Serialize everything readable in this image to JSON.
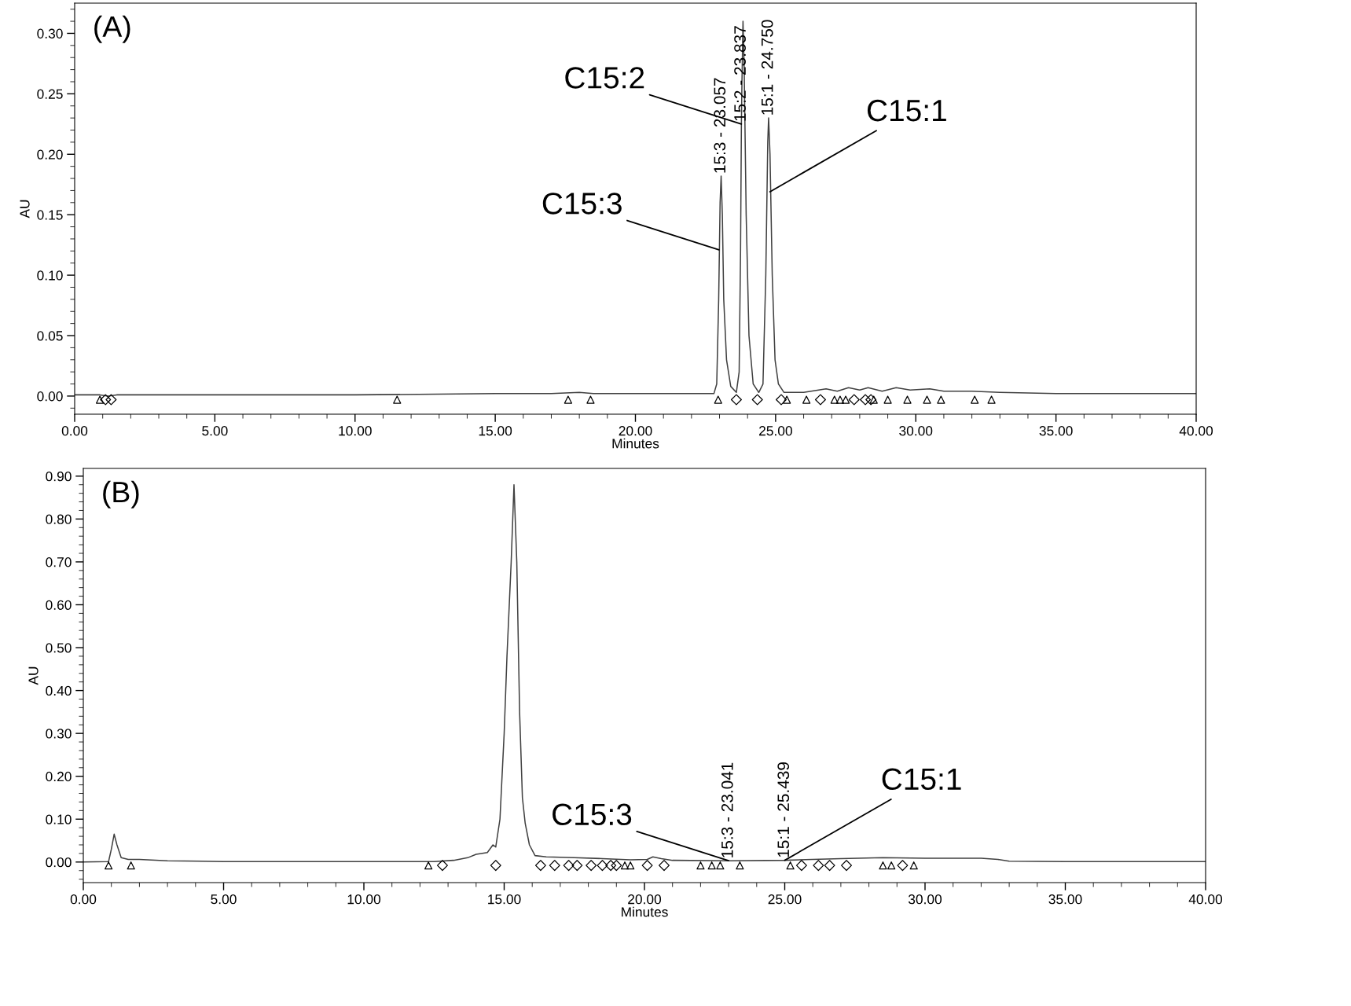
{
  "chart_data": [
    {
      "type": "line",
      "xlabel": "Minutes",
      "ylabel": "AU",
      "xlim": [
        0,
        40
      ],
      "ylim": [
        -0.015,
        0.325
      ],
      "grid": false,
      "line_style": "solid",
      "xticks": [
        {
          "value": 0,
          "label": "0.00"
        },
        {
          "value": 5,
          "label": "5.00"
        },
        {
          "value": 10,
          "label": "10.00"
        },
        {
          "value": 15,
          "label": "15.00"
        },
        {
          "value": 20,
          "label": "20.00"
        },
        {
          "value": 25,
          "label": "25.00"
        },
        {
          "value": 30,
          "label": "30.00"
        },
        {
          "value": 35,
          "label": "35.00"
        },
        {
          "value": 40,
          "label": "40.00"
        }
      ],
      "yticks": [
        {
          "value": 0,
          "label": "0.00"
        },
        {
          "value": 0.05,
          "label": "0.05"
        },
        {
          "value": 0.1,
          "label": "0.10"
        },
        {
          "value": 0.15,
          "label": "0.15"
        },
        {
          "value": 0.2,
          "label": "0.20"
        },
        {
          "value": 0.25,
          "label": "0.25"
        },
        {
          "value": 0.3,
          "label": "0.30"
        }
      ],
      "series": [
        {
          "color": "#404040",
          "marker": "none",
          "x": [
            0,
            0.9,
            1.2,
            1.5,
            5,
            10,
            15,
            17,
            18,
            18.5,
            20,
            22,
            22.8,
            22.9,
            22.97,
            23.02,
            23.057,
            23.1,
            23.15,
            23.25,
            23.4,
            23.6,
            23.7,
            23.75,
            23.78,
            23.8,
            23.837,
            23.88,
            23.95,
            24.05,
            24.2,
            24.4,
            24.55,
            24.65,
            24.72,
            24.75,
            24.8,
            24.88,
            24.98,
            25.1,
            25.3,
            26,
            26.8,
            27.2,
            27.6,
            28,
            28.3,
            28.8,
            29.3,
            29.8,
            30.5,
            31,
            32,
            33,
            35,
            40
          ],
          "values": [
            0.001,
            0.001,
            0.0,
            0.001,
            0.001,
            0.001,
            0.002,
            0.002,
            0.003,
            0.002,
            0.002,
            0.002,
            0.002,
            0.01,
            0.08,
            0.16,
            0.182,
            0.15,
            0.08,
            0.03,
            0.008,
            0.003,
            0.02,
            0.12,
            0.225,
            0.26,
            0.31,
            0.27,
            0.15,
            0.05,
            0.01,
            0.003,
            0.01,
            0.1,
            0.21,
            0.23,
            0.2,
            0.1,
            0.03,
            0.01,
            0.003,
            0.003,
            0.006,
            0.004,
            0.007,
            0.005,
            0.007,
            0.004,
            0.007,
            0.005,
            0.006,
            0.004,
            0.004,
            0.003,
            0.002,
            0.002
          ]
        },
        {
          "type": "scatter",
          "color": "#000000",
          "marker": "triangle",
          "x": [
            0.9,
            11.5,
            17.6,
            18.4,
            22.95,
            25.4,
            26.1,
            27.1,
            27.3,
            27.5,
            28.5,
            29.0,
            29.7,
            30.4,
            30.9,
            32.1,
            32.7
          ],
          "values": [
            -0.003,
            -0.003,
            -0.003,
            -0.003,
            -0.003,
            -0.003,
            -0.003,
            -0.003,
            -0.003,
            -0.003,
            -0.003,
            -0.003,
            -0.003,
            -0.003,
            -0.003,
            -0.003,
            -0.003
          ]
        },
        {
          "type": "scatter",
          "color": "#000000",
          "marker": "diamond",
          "x": [
            1.1,
            1.3,
            23.6,
            24.35,
            25.2,
            26.6,
            27.8,
            28.2,
            28.4
          ],
          "values": [
            -0.003,
            -0.003,
            -0.003,
            -0.003,
            -0.003,
            -0.003,
            -0.003,
            -0.003,
            -0.003
          ]
        }
      ],
      "annotations": [
        "(A)",
        {
          "text": "15:3 - 23.057",
          "x": 23.057,
          "y": 0.182
        },
        {
          "text": "C15:3",
          "x": 22.98,
          "y": 0.121
        },
        {
          "text": "15:2 - 23.837",
          "x": 23.78,
          "y": 0.225
        },
        {
          "text": "C15:2",
          "x": 23.78,
          "y": 0.225
        },
        {
          "text": "15:1 - 24.750",
          "x": 24.75,
          "y": 0.23
        },
        {
          "text": "C15:1",
          "x": 24.8,
          "y": 0.169
        }
      ]
    },
    {
      "type": "line",
      "xlabel": "Minutes",
      "ylabel": "AU",
      "xlim": [
        0,
        40
      ],
      "ylim": [
        -0.048,
        0.918
      ],
      "grid": false,
      "line_style": "solid",
      "xticks": [
        {
          "value": 0,
          "label": "0.00"
        },
        {
          "value": 5,
          "label": "5.00"
        },
        {
          "value": 10,
          "label": "10.00"
        },
        {
          "value": 15,
          "label": "15.00"
        },
        {
          "value": 20,
          "label": "20.00"
        },
        {
          "value": 25,
          "label": "25.00"
        },
        {
          "value": 30,
          "label": "30.00"
        },
        {
          "value": 35,
          "label": "35.00"
        },
        {
          "value": 40,
          "label": "40.00"
        }
      ],
      "yticks": [
        {
          "value": 0,
          "label": "0.00"
        },
        {
          "value": 0.1,
          "label": "0.10"
        },
        {
          "value": 0.2,
          "label": "0.20"
        },
        {
          "value": 0.3,
          "label": "0.30"
        },
        {
          "value": 0.4,
          "label": "0.40"
        },
        {
          "value": 0.5,
          "label": "0.50"
        },
        {
          "value": 0.6,
          "label": "0.60"
        },
        {
          "value": 0.7,
          "label": "0.70"
        },
        {
          "value": 0.8,
          "label": "0.80"
        },
        {
          "value": 0.9,
          "label": "0.90"
        }
      ],
      "series": [
        {
          "color": "#404040",
          "marker": "none",
          "x": [
            0,
            0.9,
            1.0,
            1.1,
            1.2,
            1.35,
            1.6,
            2,
            3,
            5,
            10,
            12.5,
            13.2,
            13.7,
            14.0,
            14.4,
            14.6,
            14.7,
            14.85,
            15.0,
            15.1,
            15.25,
            15.35,
            15.45,
            15.55,
            15.65,
            15.75,
            15.9,
            16.1,
            16.5,
            17.5,
            18.5,
            19.5,
            20.1,
            20.3,
            20.6,
            21,
            23,
            25,
            27,
            28.5,
            30,
            32,
            32.6,
            33,
            35,
            40
          ],
          "values": [
            0.0,
            0.001,
            0.03,
            0.065,
            0.04,
            0.01,
            0.006,
            0.006,
            0.003,
            0.001,
            0.001,
            0.001,
            0.004,
            0.01,
            0.018,
            0.022,
            0.04,
            0.035,
            0.1,
            0.3,
            0.48,
            0.7,
            0.88,
            0.7,
            0.35,
            0.15,
            0.09,
            0.04,
            0.015,
            0.012,
            0.01,
            0.008,
            0.005,
            0.006,
            0.012,
            0.008,
            0.004,
            0.003,
            0.004,
            0.008,
            0.01,
            0.009,
            0.009,
            0.006,
            0.002,
            0.001,
            0.001
          ]
        },
        {
          "type": "scatter",
          "color": "#000000",
          "marker": "triangle",
          "x": [
            0.9,
            1.7,
            12.3,
            19.3,
            19.5,
            22.0,
            22.4,
            22.7,
            23.4,
            25.2,
            28.5,
            28.8,
            29.6
          ],
          "values": [
            -0.008,
            -0.008,
            -0.008,
            -0.008,
            -0.008,
            -0.008,
            -0.008,
            -0.008,
            -0.008,
            -0.008,
            -0.008,
            -0.008,
            -0.008
          ]
        },
        {
          "type": "scatter",
          "color": "#000000",
          "marker": "diamond",
          "x": [
            12.8,
            14.7,
            16.3,
            16.8,
            17.3,
            17.6,
            18.1,
            18.5,
            18.8,
            19.0,
            20.1,
            20.7,
            25.6,
            26.2,
            26.6,
            27.2,
            29.2
          ],
          "values": [
            -0.008,
            -0.008,
            -0.008,
            -0.008,
            -0.008,
            -0.008,
            -0.008,
            -0.008,
            -0.008,
            -0.008,
            -0.008,
            -0.008,
            -0.008,
            -0.008,
            -0.008,
            -0.008,
            -0.008
          ]
        }
      ],
      "annotations": [
        "(B)",
        {
          "text": "15:3 - 23.041",
          "x": 23,
          "y": 0.003
        },
        {
          "text": "C15:3",
          "x": 23,
          "y": 0.003
        },
        {
          "text": "15:1 - 25.439",
          "x": 25,
          "y": 0.004
        },
        {
          "text": "C15:1",
          "x": 25,
          "y": 0.004
        }
      ]
    }
  ]
}
